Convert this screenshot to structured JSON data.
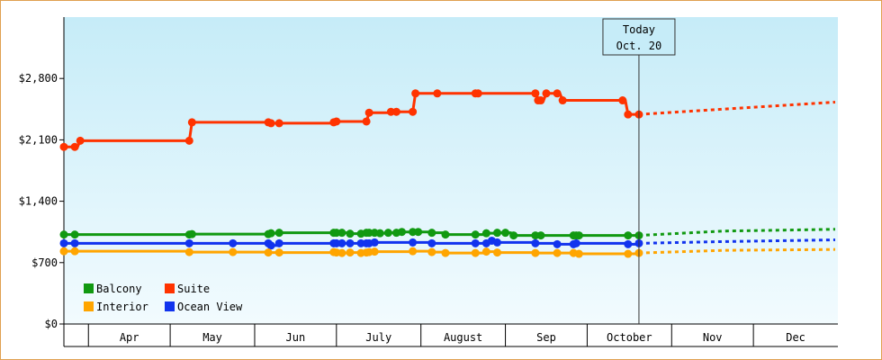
{
  "chart_data": {
    "type": "line",
    "title": "",
    "xlabel": "",
    "ylabel": "",
    "ylim": [
      0,
      3500
    ],
    "yticks": [
      0,
      700,
      1400,
      2100,
      2800
    ],
    "ytick_labels": [
      "$0",
      "$700",
      "$1,400",
      "$2,100",
      "$2,800"
    ],
    "xlim": [
      "2019-03-23",
      "2019-12-31"
    ],
    "months": [
      {
        "label": "Apr",
        "start": "2019-04-01",
        "end": "2019-04-30"
      },
      {
        "label": "May",
        "start": "2019-05-01",
        "end": "2019-05-31"
      },
      {
        "label": "Jun",
        "start": "2019-06-01",
        "end": "2019-06-30"
      },
      {
        "label": "July",
        "start": "2019-07-01",
        "end": "2019-07-31"
      },
      {
        "label": "August",
        "start": "2019-08-01",
        "end": "2019-08-31"
      },
      {
        "label": "Sep",
        "start": "2019-09-01",
        "end": "2019-09-30"
      },
      {
        "label": "October",
        "start": "2019-10-01",
        "end": "2019-10-31"
      },
      {
        "label": "Nov",
        "start": "2019-11-01",
        "end": "2019-11-30"
      },
      {
        "label": "Dec",
        "start": "2019-12-01",
        "end": "2019-12-31"
      }
    ],
    "today": {
      "line1": "Today",
      "line2": "Oct. 20",
      "date": "2019-10-20"
    },
    "grid": false,
    "legend_position": "bottom-left",
    "series": [
      {
        "name": "Suite",
        "color": "#ff3300",
        "points": [
          [
            "2019-03-23",
            2020
          ],
          [
            "2019-03-27",
            2020
          ],
          [
            "2019-03-29",
            2090
          ],
          [
            "2019-05-08",
            2090
          ],
          [
            "2019-05-09",
            2300
          ],
          [
            "2019-06-06",
            2300
          ],
          [
            "2019-06-07",
            2290
          ],
          [
            "2019-06-10",
            2290
          ],
          [
            "2019-06-30",
            2300
          ],
          [
            "2019-07-01",
            2310
          ],
          [
            "2019-07-12",
            2310
          ],
          [
            "2019-07-13",
            2410
          ],
          [
            "2019-07-21",
            2420
          ],
          [
            "2019-07-23",
            2420
          ],
          [
            "2019-07-29",
            2420
          ],
          [
            "2019-07-30",
            2630
          ],
          [
            "2019-08-07",
            2630
          ],
          [
            "2019-08-21",
            2630
          ],
          [
            "2019-08-22",
            2630
          ],
          [
            "2019-09-12",
            2630
          ],
          [
            "2019-09-13",
            2550
          ],
          [
            "2019-09-14",
            2550
          ],
          [
            "2019-09-16",
            2630
          ],
          [
            "2019-09-20",
            2630
          ],
          [
            "2019-09-22",
            2550
          ],
          [
            "2019-10-14",
            2550
          ],
          [
            "2019-10-16",
            2390
          ],
          [
            "2019-10-20",
            2390
          ]
        ],
        "forecast": [
          [
            "2019-10-20",
            2390
          ],
          [
            "2019-12-31",
            2530
          ]
        ]
      },
      {
        "name": "Balcony",
        "color": "#119911",
        "points": [
          [
            "2019-03-23",
            1020
          ],
          [
            "2019-03-27",
            1020
          ],
          [
            "2019-05-08",
            1020
          ],
          [
            "2019-05-09",
            1025
          ],
          [
            "2019-06-06",
            1025
          ],
          [
            "2019-06-07",
            1035
          ],
          [
            "2019-06-10",
            1040
          ],
          [
            "2019-06-30",
            1040
          ],
          [
            "2019-07-01",
            1040
          ],
          [
            "2019-07-03",
            1040
          ],
          [
            "2019-07-06",
            1030
          ],
          [
            "2019-07-10",
            1030
          ],
          [
            "2019-07-12",
            1040
          ],
          [
            "2019-07-13",
            1040
          ],
          [
            "2019-07-15",
            1040
          ],
          [
            "2019-07-17",
            1035
          ],
          [
            "2019-07-20",
            1040
          ],
          [
            "2019-07-23",
            1040
          ],
          [
            "2019-07-25",
            1050
          ],
          [
            "2019-07-29",
            1050
          ],
          [
            "2019-07-31",
            1050
          ],
          [
            "2019-08-05",
            1040
          ],
          [
            "2019-08-10",
            1020
          ],
          [
            "2019-08-21",
            1020
          ],
          [
            "2019-08-25",
            1035
          ],
          [
            "2019-08-29",
            1040
          ],
          [
            "2019-09-01",
            1040
          ],
          [
            "2019-09-04",
            1010
          ],
          [
            "2019-09-12",
            1010
          ],
          [
            "2019-09-14",
            1010
          ],
          [
            "2019-09-26",
            1010
          ],
          [
            "2019-09-27",
            1010
          ],
          [
            "2019-09-28",
            1010
          ],
          [
            "2019-10-16",
            1010
          ],
          [
            "2019-10-20",
            1010
          ]
        ],
        "forecast": [
          [
            "2019-10-20",
            1010
          ],
          [
            "2019-11-20",
            1060
          ],
          [
            "2019-12-31",
            1080
          ]
        ]
      },
      {
        "name": "Ocean View",
        "color": "#1133ee",
        "points": [
          [
            "2019-03-23",
            920
          ],
          [
            "2019-03-27",
            920
          ],
          [
            "2019-05-08",
            920
          ],
          [
            "2019-05-24",
            920
          ],
          [
            "2019-06-06",
            920
          ],
          [
            "2019-06-07",
            895
          ],
          [
            "2019-06-10",
            920
          ],
          [
            "2019-06-30",
            920
          ],
          [
            "2019-07-01",
            920
          ],
          [
            "2019-07-03",
            920
          ],
          [
            "2019-07-06",
            920
          ],
          [
            "2019-07-10",
            920
          ],
          [
            "2019-07-12",
            920
          ],
          [
            "2019-07-13",
            920
          ],
          [
            "2019-07-15",
            930
          ],
          [
            "2019-07-29",
            930
          ],
          [
            "2019-08-05",
            920
          ],
          [
            "2019-08-21",
            920
          ],
          [
            "2019-08-25",
            920
          ],
          [
            "2019-08-27",
            950
          ],
          [
            "2019-08-29",
            930
          ],
          [
            "2019-09-12",
            920
          ],
          [
            "2019-09-20",
            910
          ],
          [
            "2019-09-26",
            910
          ],
          [
            "2019-09-27",
            920
          ],
          [
            "2019-10-16",
            910
          ],
          [
            "2019-10-20",
            920
          ]
        ],
        "forecast": [
          [
            "2019-10-20",
            920
          ],
          [
            "2019-11-20",
            940
          ],
          [
            "2019-12-31",
            960
          ]
        ]
      },
      {
        "name": "Interior",
        "color": "#ffa500",
        "points": [
          [
            "2019-03-23",
            830
          ],
          [
            "2019-03-27",
            830
          ],
          [
            "2019-05-08",
            820
          ],
          [
            "2019-05-24",
            820
          ],
          [
            "2019-06-06",
            815
          ],
          [
            "2019-06-10",
            815
          ],
          [
            "2019-06-30",
            820
          ],
          [
            "2019-07-01",
            815
          ],
          [
            "2019-07-03",
            810
          ],
          [
            "2019-07-06",
            815
          ],
          [
            "2019-07-10",
            810
          ],
          [
            "2019-07-12",
            815
          ],
          [
            "2019-07-13",
            820
          ],
          [
            "2019-07-15",
            825
          ],
          [
            "2019-07-29",
            830
          ],
          [
            "2019-08-05",
            820
          ],
          [
            "2019-08-10",
            810
          ],
          [
            "2019-08-21",
            810
          ],
          [
            "2019-08-25",
            825
          ],
          [
            "2019-08-29",
            815
          ],
          [
            "2019-09-12",
            810
          ],
          [
            "2019-09-20",
            810
          ],
          [
            "2019-09-26",
            810
          ],
          [
            "2019-09-28",
            800
          ],
          [
            "2019-10-16",
            800
          ],
          [
            "2019-10-20",
            810
          ]
        ],
        "forecast": [
          [
            "2019-10-20",
            810
          ],
          [
            "2019-11-20",
            840
          ],
          [
            "2019-12-31",
            850
          ]
        ]
      }
    ],
    "legend": [
      {
        "name": "Balcony",
        "color": "#119911"
      },
      {
        "name": "Suite",
        "color": "#ff3300"
      },
      {
        "name": "Interior",
        "color": "#ffa500"
      },
      {
        "name": "Ocean View",
        "color": "#1133ee"
      }
    ],
    "colors": {
      "plot_bg_top": "#c6ecf8",
      "plot_bg_bottom": "#f2fbfe",
      "frame_border": "#e0a050"
    }
  }
}
